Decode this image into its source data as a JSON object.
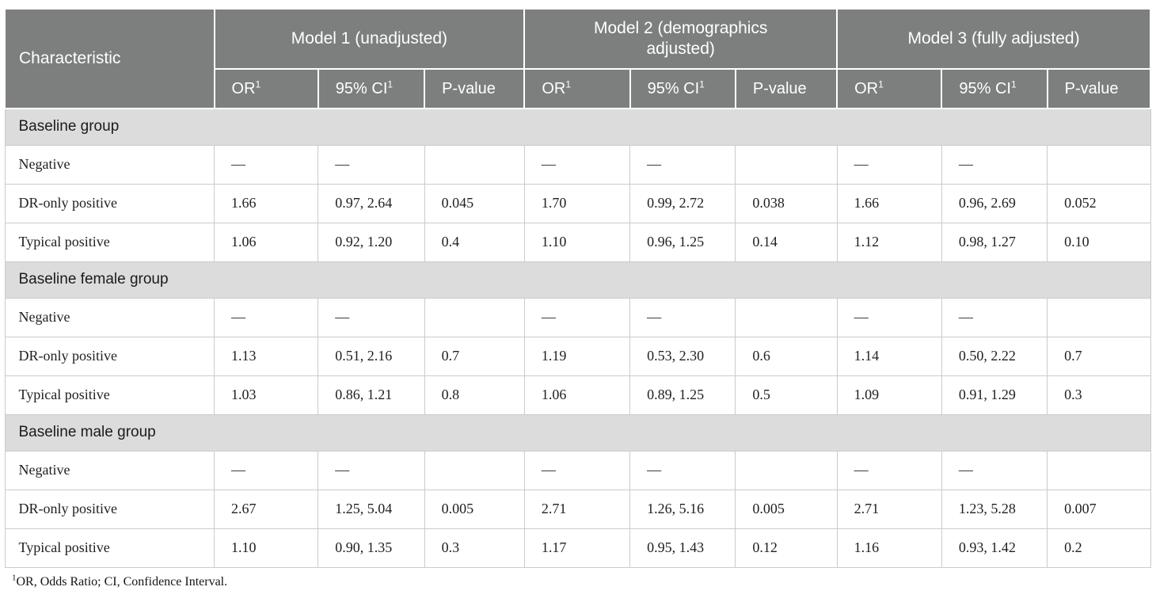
{
  "table": {
    "header": {
      "characteristic": "Characteristic",
      "model_groups": [
        {
          "label": "Model 1 (unadjusted)"
        },
        {
          "label": "Model 2 (demographics adjusted)"
        },
        {
          "label": "Model 3 (fully adjusted)"
        }
      ],
      "sub_columns": [
        {
          "label": "OR",
          "sup": "1"
        },
        {
          "label": "95% CI",
          "sup": "1"
        },
        {
          "label": "P-value",
          "sup": ""
        }
      ]
    },
    "sections": [
      {
        "title": "Baseline group",
        "rows": [
          {
            "label": "Negative",
            "cells": [
              "—",
              "—",
              "",
              "—",
              "—",
              "",
              "—",
              "—",
              ""
            ]
          },
          {
            "label": "DR-only positive",
            "cells": [
              "1.66",
              "0.97, 2.64",
              "0.045",
              "1.70",
              "0.99, 2.72",
              "0.038",
              "1.66",
              "0.96, 2.69",
              "0.052"
            ]
          },
          {
            "label": "Typical positive",
            "cells": [
              "1.06",
              "0.92, 1.20",
              "0.4",
              "1.10",
              "0.96, 1.25",
              "0.14",
              "1.12",
              "0.98, 1.27",
              "0.10"
            ]
          }
        ]
      },
      {
        "title": "Baseline female group",
        "rows": [
          {
            "label": "Negative",
            "cells": [
              "—",
              "—",
              "",
              "—",
              "—",
              "",
              "—",
              "—",
              ""
            ]
          },
          {
            "label": "DR-only positive",
            "cells": [
              "1.13",
              "0.51, 2.16",
              "0.7",
              "1.19",
              "0.53, 2.30",
              "0.6",
              "1.14",
              "0.50, 2.22",
              "0.7"
            ]
          },
          {
            "label": "Typical positive",
            "cells": [
              "1.03",
              "0.86, 1.21",
              "0.8",
              "1.06",
              "0.89, 1.25",
              "0.5",
              "1.09",
              "0.91, 1.29",
              "0.3"
            ]
          }
        ]
      },
      {
        "title": "Baseline male group",
        "rows": [
          {
            "label": "Negative",
            "cells": [
              "—",
              "—",
              "",
              "—",
              "—",
              "",
              "—",
              "—",
              ""
            ]
          },
          {
            "label": "DR-only positive",
            "cells": [
              "2.67",
              "1.25, 5.04",
              "0.005",
              "2.71",
              "1.26, 5.16",
              "0.005",
              "2.71",
              "1.23, 5.28",
              "0.007"
            ]
          },
          {
            "label": "Typical positive",
            "cells": [
              "1.10",
              "0.90, 1.35",
              "0.3",
              "1.17",
              "0.95, 1.43",
              "0.12",
              "1.16",
              "0.93, 1.42",
              "0.2"
            ]
          }
        ]
      }
    ],
    "footnote": {
      "sup": "1",
      "text": "OR, Odds Ratio; CI, Confidence Interval."
    }
  },
  "colors": {
    "header_bg": "#7d7f7e",
    "header_text": "#ffffff",
    "section_bg": "#dcdcdd",
    "body_border": "#cbcbcb",
    "text": "#1f1f1f"
  }
}
